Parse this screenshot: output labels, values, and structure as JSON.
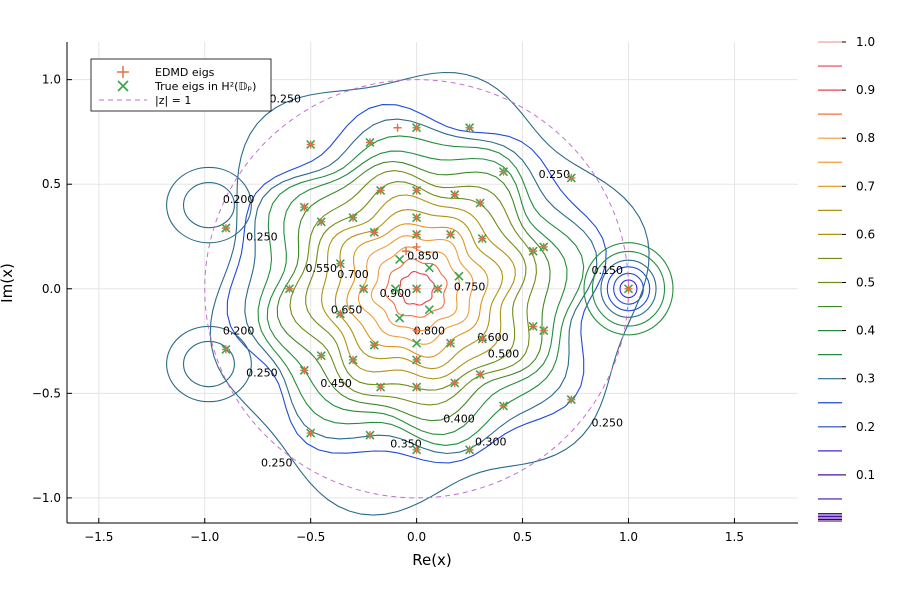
{
  "chart_data": {
    "type": "contour",
    "title": "",
    "xlabel": "Re(x)",
    "ylabel": "Im(x)",
    "xlim": [
      -1.65,
      1.8
    ],
    "ylim": [
      -1.12,
      1.18
    ],
    "xticks": [
      -1.5,
      -1.0,
      -0.5,
      0.0,
      0.5,
      1.0,
      1.5
    ],
    "xtick_labels": [
      "−1.5",
      "−1.0",
      "−0.5",
      "0.0",
      "0.5",
      "1.0",
      "1.5"
    ],
    "yticks": [
      -1.0,
      -0.5,
      0.0,
      0.5,
      1.0
    ],
    "ytick_labels": [
      "−1.0",
      "−0.5",
      "0.0",
      "0.5",
      "1.0"
    ],
    "grid": true,
    "legend_position": "top-left",
    "legend": [
      {
        "label": "EDMD eigs",
        "marker": "+",
        "color": "#e26f46"
      },
      {
        "label": "True eigs in H²(𝔻ₚ)",
        "marker": "x",
        "color": "#3da44d"
      },
      {
        "label": "|z| = 1",
        "marker": "dashed-line",
        "color": "#c271d2"
      }
    ],
    "colorbar": {
      "range": [
        0,
        1.0
      ],
      "ticks": [
        0.1,
        0.2,
        0.3,
        0.4,
        0.5,
        0.6,
        0.7,
        0.8,
        0.9,
        1.0
      ],
      "tick_labels": [
        "0.1",
        "0.2",
        "0.3",
        "0.4",
        "0.5",
        "0.6",
        "0.7",
        "0.8",
        "0.9",
        "1.0"
      ],
      "levels": [
        0.05,
        0.1,
        0.15,
        0.2,
        0.25,
        0.3,
        0.35,
        0.4,
        0.45,
        0.5,
        0.55,
        0.6,
        0.65,
        0.7,
        0.75,
        0.8,
        0.85,
        0.9,
        0.95,
        1.0
      ]
    },
    "central_peak": {
      "x": 0.0,
      "y": 0.0,
      "value": 0.95
    },
    "right_peak": {
      "x": 1.0,
      "y": 0.0
    },
    "contour_labels": [
      {
        "text": "0.250",
        "x": -0.62,
        "y": 0.91
      },
      {
        "text": "0.200",
        "x": -0.84,
        "y": 0.43
      },
      {
        "text": "0.250",
        "x": -0.73,
        "y": 0.25
      },
      {
        "text": "0.200",
        "x": -0.84,
        "y": -0.2
      },
      {
        "text": "0.250",
        "x": -0.73,
        "y": -0.4
      },
      {
        "text": "0.250",
        "x": -0.66,
        "y": -0.83
      },
      {
        "text": "0.250",
        "x": 0.65,
        "y": 0.55
      },
      {
        "text": "0.150",
        "x": 0.9,
        "y": 0.09
      },
      {
        "text": "0.250",
        "x": 0.9,
        "y": -0.64
      },
      {
        "text": "0.550",
        "x": -0.45,
        "y": 0.1
      },
      {
        "text": "0.700",
        "x": -0.3,
        "y": 0.07
      },
      {
        "text": "0.650",
        "x": -0.33,
        "y": -0.1
      },
      {
        "text": "0.900",
        "x": -0.1,
        "y": -0.02
      },
      {
        "text": "0.850",
        "x": 0.03,
        "y": 0.16
      },
      {
        "text": "0.800",
        "x": 0.06,
        "y": -0.2
      },
      {
        "text": "0.750",
        "x": 0.25,
        "y": 0.01
      },
      {
        "text": "0.600",
        "x": 0.36,
        "y": -0.23
      },
      {
        "text": "0.500",
        "x": 0.41,
        "y": -0.31
      },
      {
        "text": "0.450",
        "x": -0.38,
        "y": -0.45
      },
      {
        "text": "0.400",
        "x": 0.2,
        "y": -0.62
      },
      {
        "text": "0.350",
        "x": -0.05,
        "y": -0.74
      },
      {
        "text": "0.300",
        "x": 0.35,
        "y": -0.73
      }
    ],
    "series": [
      {
        "name": "EDMD eigs",
        "marker": "+",
        "points": [
          [
            -0.09,
            0.77
          ],
          [
            0.0,
            0.77
          ],
          [
            0.25,
            0.77
          ],
          [
            -0.5,
            0.69
          ],
          [
            -0.22,
            0.7
          ],
          [
            0.41,
            0.56
          ],
          [
            0.73,
            0.53
          ],
          [
            -0.53,
            0.39
          ],
          [
            -0.17,
            0.47
          ],
          [
            0.0,
            0.47
          ],
          [
            0.18,
            0.45
          ],
          [
            -0.45,
            0.32
          ],
          [
            -0.3,
            0.34
          ],
          [
            0.0,
            0.34
          ],
          [
            0.3,
            0.41
          ],
          [
            -0.9,
            0.29
          ],
          [
            -0.2,
            0.27
          ],
          [
            0.0,
            0.26
          ],
          [
            0.16,
            0.26
          ],
          [
            0.55,
            0.18
          ],
          [
            -0.36,
            0.12
          ],
          [
            -0.05,
            0.18
          ],
          [
            0.0,
            0.2
          ],
          [
            0.6,
            0.2
          ],
          [
            0.31,
            0.24
          ],
          [
            -0.6,
            0.0
          ],
          [
            -0.25,
            0.0
          ],
          [
            0.1,
            0.0
          ],
          [
            0.0,
            0.0
          ],
          [
            -0.36,
            -0.12
          ],
          [
            -0.2,
            -0.27
          ],
          [
            0.0,
            -0.2
          ],
          [
            0.16,
            -0.26
          ],
          [
            -0.53,
            -0.39
          ],
          [
            -0.45,
            -0.32
          ],
          [
            -0.3,
            -0.34
          ],
          [
            0.0,
            -0.34
          ],
          [
            0.3,
            -0.41
          ],
          [
            -0.9,
            -0.29
          ],
          [
            0.55,
            -0.18
          ],
          [
            0.6,
            -0.2
          ],
          [
            0.31,
            -0.24
          ],
          [
            -0.17,
            -0.47
          ],
          [
            0.0,
            -0.47
          ],
          [
            0.18,
            -0.45
          ],
          [
            -0.5,
            -0.69
          ],
          [
            -0.22,
            -0.7
          ],
          [
            0.41,
            -0.56
          ],
          [
            0.73,
            -0.53
          ],
          [
            0.0,
            -0.77
          ],
          [
            0.25,
            -0.77
          ],
          [
            1.0,
            0.0
          ]
        ]
      },
      {
        "name": "True eigs in H²(𝔻ₚ)",
        "marker": "x",
        "points": [
          [
            0.0,
            0.77
          ],
          [
            0.25,
            0.77
          ],
          [
            -0.5,
            0.69
          ],
          [
            -0.22,
            0.7
          ],
          [
            0.41,
            0.56
          ],
          [
            0.73,
            0.53
          ],
          [
            -0.53,
            0.39
          ],
          [
            -0.17,
            0.47
          ],
          [
            0.0,
            0.47
          ],
          [
            0.18,
            0.45
          ],
          [
            -0.45,
            0.32
          ],
          [
            -0.3,
            0.34
          ],
          [
            0.0,
            0.34
          ],
          [
            0.3,
            0.41
          ],
          [
            -0.9,
            0.29
          ],
          [
            -0.2,
            0.27
          ],
          [
            0.0,
            0.26
          ],
          [
            0.16,
            0.26
          ],
          [
            0.55,
            0.18
          ],
          [
            -0.36,
            0.12
          ],
          [
            -0.08,
            0.14
          ],
          [
            0.06,
            0.1
          ],
          [
            0.6,
            0.2
          ],
          [
            0.31,
            0.24
          ],
          [
            -0.6,
            0.0
          ],
          [
            -0.25,
            0.0
          ],
          [
            -0.1,
            0.0
          ],
          [
            0.1,
            0.0
          ],
          [
            0.0,
            0.0
          ],
          [
            0.2,
            0.06
          ],
          [
            -0.36,
            -0.12
          ],
          [
            -0.08,
            -0.14
          ],
          [
            0.06,
            -0.1
          ],
          [
            -0.2,
            -0.27
          ],
          [
            0.0,
            -0.26
          ],
          [
            0.16,
            -0.26
          ],
          [
            -0.53,
            -0.39
          ],
          [
            -0.45,
            -0.32
          ],
          [
            -0.3,
            -0.34
          ],
          [
            0.0,
            -0.34
          ],
          [
            0.3,
            -0.41
          ],
          [
            -0.9,
            -0.29
          ],
          [
            0.55,
            -0.18
          ],
          [
            0.6,
            -0.2
          ],
          [
            0.31,
            -0.24
          ],
          [
            -0.17,
            -0.47
          ],
          [
            0.0,
            -0.47
          ],
          [
            0.18,
            -0.45
          ],
          [
            -0.5,
            -0.69
          ],
          [
            -0.22,
            -0.7
          ],
          [
            0.41,
            -0.56
          ],
          [
            0.73,
            -0.53
          ],
          [
            0.0,
            -0.77
          ],
          [
            0.25,
            -0.77
          ],
          [
            1.0,
            0.0
          ]
        ]
      }
    ]
  },
  "colors": {
    "edmd": "#e26f46",
    "true": "#3da44d",
    "unit_circle": "#c271d2",
    "colormap": [
      "#440154",
      "#4b11a8",
      "#3b2ad6",
      "#1f4ad9",
      "#2a6a8a",
      "#218f3b",
      "#3d8a25",
      "#6f8e19",
      "#b09312",
      "#e0951a",
      "#f29b3a",
      "#f0723e",
      "#e6424f",
      "#f2a0a6"
    ]
  }
}
